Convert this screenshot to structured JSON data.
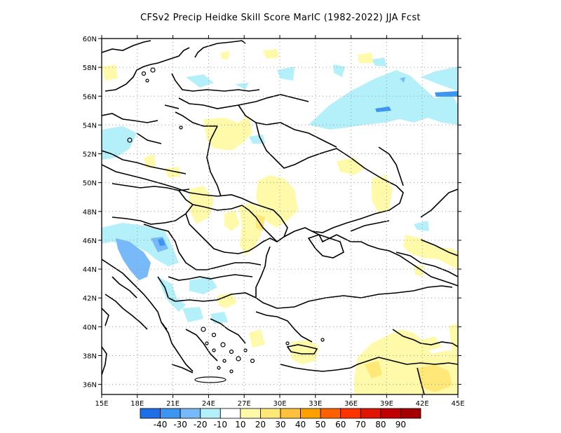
{
  "title": "CFSv2 Precip Heidke Skill Score MarIC (1982-2022) JJA Fcst",
  "lat_ticks": [
    "60N",
    "58N",
    "56N",
    "54N",
    "52N",
    "50N",
    "48N",
    "46N",
    "44N",
    "42N",
    "40N",
    "38N",
    "36N"
  ],
  "lon_ticks": [
    "15E",
    "18E",
    "21E",
    "24E",
    "27E",
    "30E",
    "33E",
    "36E",
    "39E",
    "42E",
    "45E"
  ],
  "colorbar": {
    "labels": [
      "-40",
      "-30",
      "-20",
      "-10",
      "10",
      "20",
      "30",
      "40",
      "50",
      "60",
      "70",
      "80",
      "90"
    ],
    "colors": [
      "#1e6ee6",
      "#3c96f0",
      "#78b9fa",
      "#b4f0fa",
      "#ffffff",
      "#fffaaa",
      "#ffe878",
      "#ffc03c",
      "#ffa000",
      "#ff6000",
      "#ff3200",
      "#e11400",
      "#c00000",
      "#a50000"
    ]
  },
  "shading_colors": {
    "light_blue": "#b4f0fa",
    "medium_blue": "#78b9fa",
    "dark_blue": "#3c96f0",
    "light_yellow": "#fffaaa",
    "yellow": "#ffe878"
  }
}
